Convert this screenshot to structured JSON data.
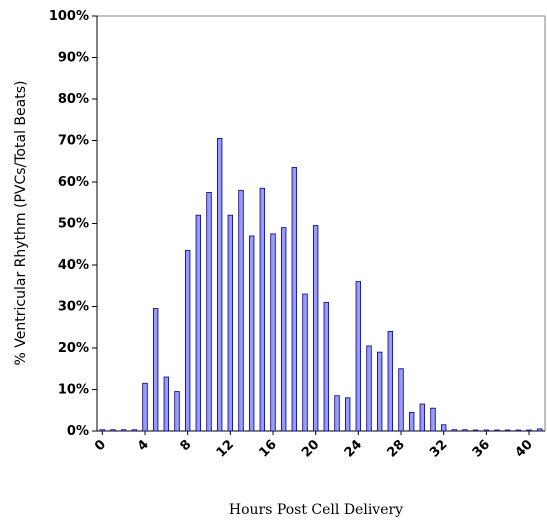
{
  "chart_data": {
    "type": "bar",
    "title": "",
    "xlabel": "Hours Post Cell Delivery",
    "ylabel": "% Ventricular Rhythm (PVCs/Total Beats)",
    "ylim": [
      0,
      100
    ],
    "y_tick_values": [
      0,
      10,
      20,
      30,
      40,
      50,
      60,
      70,
      80,
      90,
      100
    ],
    "y_tick_labels": [
      "0%",
      "10%",
      "20%",
      "30%",
      "40%",
      "50%",
      "60%",
      "70%",
      "80%",
      "90%",
      "100%"
    ],
    "x_tick_labels": [
      "0",
      "4",
      "8",
      "12",
      "16",
      "20",
      "24",
      "28",
      "32",
      "36",
      "40"
    ],
    "x": [
      0,
      1,
      2,
      3,
      4,
      5,
      6,
      7,
      8,
      9,
      10,
      11,
      12,
      13,
      14,
      15,
      16,
      17,
      18,
      19,
      20,
      21,
      22,
      23,
      24,
      25,
      26,
      27,
      28,
      29,
      30,
      31,
      32,
      33,
      34,
      35,
      36,
      37,
      38,
      39,
      40,
      41
    ],
    "values": [
      0.3,
      0.3,
      0.3,
      0.3,
      11.5,
      29.5,
      13,
      9.5,
      43.5,
      52,
      57.5,
      70.5,
      52,
      58,
      47,
      58.5,
      47.5,
      49,
      63.5,
      33,
      49.5,
      31,
      8.5,
      8,
      36,
      20.5,
      19,
      24,
      15,
      4.5,
      6.5,
      5.5,
      1.5,
      0.3,
      0.3,
      0,
      0,
      0,
      0,
      0,
      0,
      0.5
    ],
    "bar_color": "#9999ff",
    "bar_stroke": "#000066",
    "grid": false,
    "legend": "none"
  }
}
